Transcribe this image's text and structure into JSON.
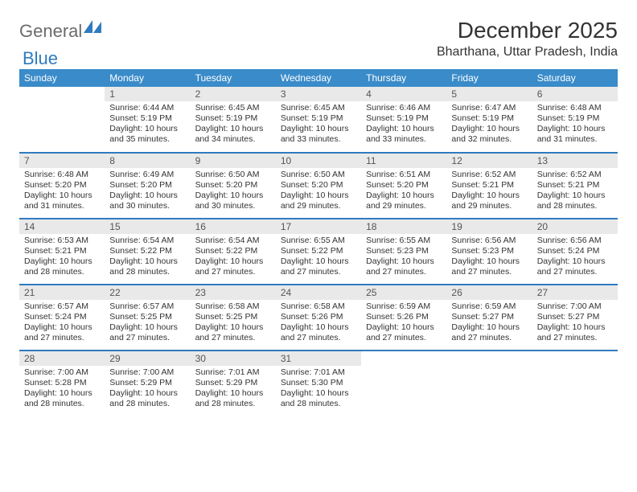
{
  "brand": {
    "part1": "General",
    "part2": "Blue"
  },
  "title": "December 2025",
  "location": "Bharthana, Uttar Pradesh, India",
  "colors": {
    "header_bg": "#3a8bc9",
    "header_text": "#ffffff",
    "divider": "#2f7bbf",
    "daynum_bg": "#e9e9e9",
    "text": "#333333",
    "logo_gray": "#6b6b6b",
    "logo_blue": "#2f7bbf",
    "page_bg": "#ffffff"
  },
  "typography": {
    "title_fontsize": 28,
    "location_fontsize": 16,
    "header_fontsize": 12,
    "daynum_fontsize": 12,
    "info_fontsize": 10.5
  },
  "weekdays": [
    "Sunday",
    "Monday",
    "Tuesday",
    "Wednesday",
    "Thursday",
    "Friday",
    "Saturday"
  ],
  "weeks": [
    [
      null,
      {
        "n": "1",
        "sr": "6:44 AM",
        "ss": "5:19 PM",
        "dl": "10 hours and 35 minutes."
      },
      {
        "n": "2",
        "sr": "6:45 AM",
        "ss": "5:19 PM",
        "dl": "10 hours and 34 minutes."
      },
      {
        "n": "3",
        "sr": "6:45 AM",
        "ss": "5:19 PM",
        "dl": "10 hours and 33 minutes."
      },
      {
        "n": "4",
        "sr": "6:46 AM",
        "ss": "5:19 PM",
        "dl": "10 hours and 33 minutes."
      },
      {
        "n": "5",
        "sr": "6:47 AM",
        "ss": "5:19 PM",
        "dl": "10 hours and 32 minutes."
      },
      {
        "n": "6",
        "sr": "6:48 AM",
        "ss": "5:19 PM",
        "dl": "10 hours and 31 minutes."
      }
    ],
    [
      {
        "n": "7",
        "sr": "6:48 AM",
        "ss": "5:20 PM",
        "dl": "10 hours and 31 minutes."
      },
      {
        "n": "8",
        "sr": "6:49 AM",
        "ss": "5:20 PM",
        "dl": "10 hours and 30 minutes."
      },
      {
        "n": "9",
        "sr": "6:50 AM",
        "ss": "5:20 PM",
        "dl": "10 hours and 30 minutes."
      },
      {
        "n": "10",
        "sr": "6:50 AM",
        "ss": "5:20 PM",
        "dl": "10 hours and 29 minutes."
      },
      {
        "n": "11",
        "sr": "6:51 AM",
        "ss": "5:20 PM",
        "dl": "10 hours and 29 minutes."
      },
      {
        "n": "12",
        "sr": "6:52 AM",
        "ss": "5:21 PM",
        "dl": "10 hours and 29 minutes."
      },
      {
        "n": "13",
        "sr": "6:52 AM",
        "ss": "5:21 PM",
        "dl": "10 hours and 28 minutes."
      }
    ],
    [
      {
        "n": "14",
        "sr": "6:53 AM",
        "ss": "5:21 PM",
        "dl": "10 hours and 28 minutes."
      },
      {
        "n": "15",
        "sr": "6:54 AM",
        "ss": "5:22 PM",
        "dl": "10 hours and 28 minutes."
      },
      {
        "n": "16",
        "sr": "6:54 AM",
        "ss": "5:22 PM",
        "dl": "10 hours and 27 minutes."
      },
      {
        "n": "17",
        "sr": "6:55 AM",
        "ss": "5:22 PM",
        "dl": "10 hours and 27 minutes."
      },
      {
        "n": "18",
        "sr": "6:55 AM",
        "ss": "5:23 PM",
        "dl": "10 hours and 27 minutes."
      },
      {
        "n": "19",
        "sr": "6:56 AM",
        "ss": "5:23 PM",
        "dl": "10 hours and 27 minutes."
      },
      {
        "n": "20",
        "sr": "6:56 AM",
        "ss": "5:24 PM",
        "dl": "10 hours and 27 minutes."
      }
    ],
    [
      {
        "n": "21",
        "sr": "6:57 AM",
        "ss": "5:24 PM",
        "dl": "10 hours and 27 minutes."
      },
      {
        "n": "22",
        "sr": "6:57 AM",
        "ss": "5:25 PM",
        "dl": "10 hours and 27 minutes."
      },
      {
        "n": "23",
        "sr": "6:58 AM",
        "ss": "5:25 PM",
        "dl": "10 hours and 27 minutes."
      },
      {
        "n": "24",
        "sr": "6:58 AM",
        "ss": "5:26 PM",
        "dl": "10 hours and 27 minutes."
      },
      {
        "n": "25",
        "sr": "6:59 AM",
        "ss": "5:26 PM",
        "dl": "10 hours and 27 minutes."
      },
      {
        "n": "26",
        "sr": "6:59 AM",
        "ss": "5:27 PM",
        "dl": "10 hours and 27 minutes."
      },
      {
        "n": "27",
        "sr": "7:00 AM",
        "ss": "5:27 PM",
        "dl": "10 hours and 27 minutes."
      }
    ],
    [
      {
        "n": "28",
        "sr": "7:00 AM",
        "ss": "5:28 PM",
        "dl": "10 hours and 28 minutes."
      },
      {
        "n": "29",
        "sr": "7:00 AM",
        "ss": "5:29 PM",
        "dl": "10 hours and 28 minutes."
      },
      {
        "n": "30",
        "sr": "7:01 AM",
        "ss": "5:29 PM",
        "dl": "10 hours and 28 minutes."
      },
      {
        "n": "31",
        "sr": "7:01 AM",
        "ss": "5:30 PM",
        "dl": "10 hours and 28 minutes."
      },
      null,
      null,
      null
    ]
  ],
  "labels": {
    "sunrise": "Sunrise:",
    "sunset": "Sunset:",
    "daylight": "Daylight:"
  }
}
